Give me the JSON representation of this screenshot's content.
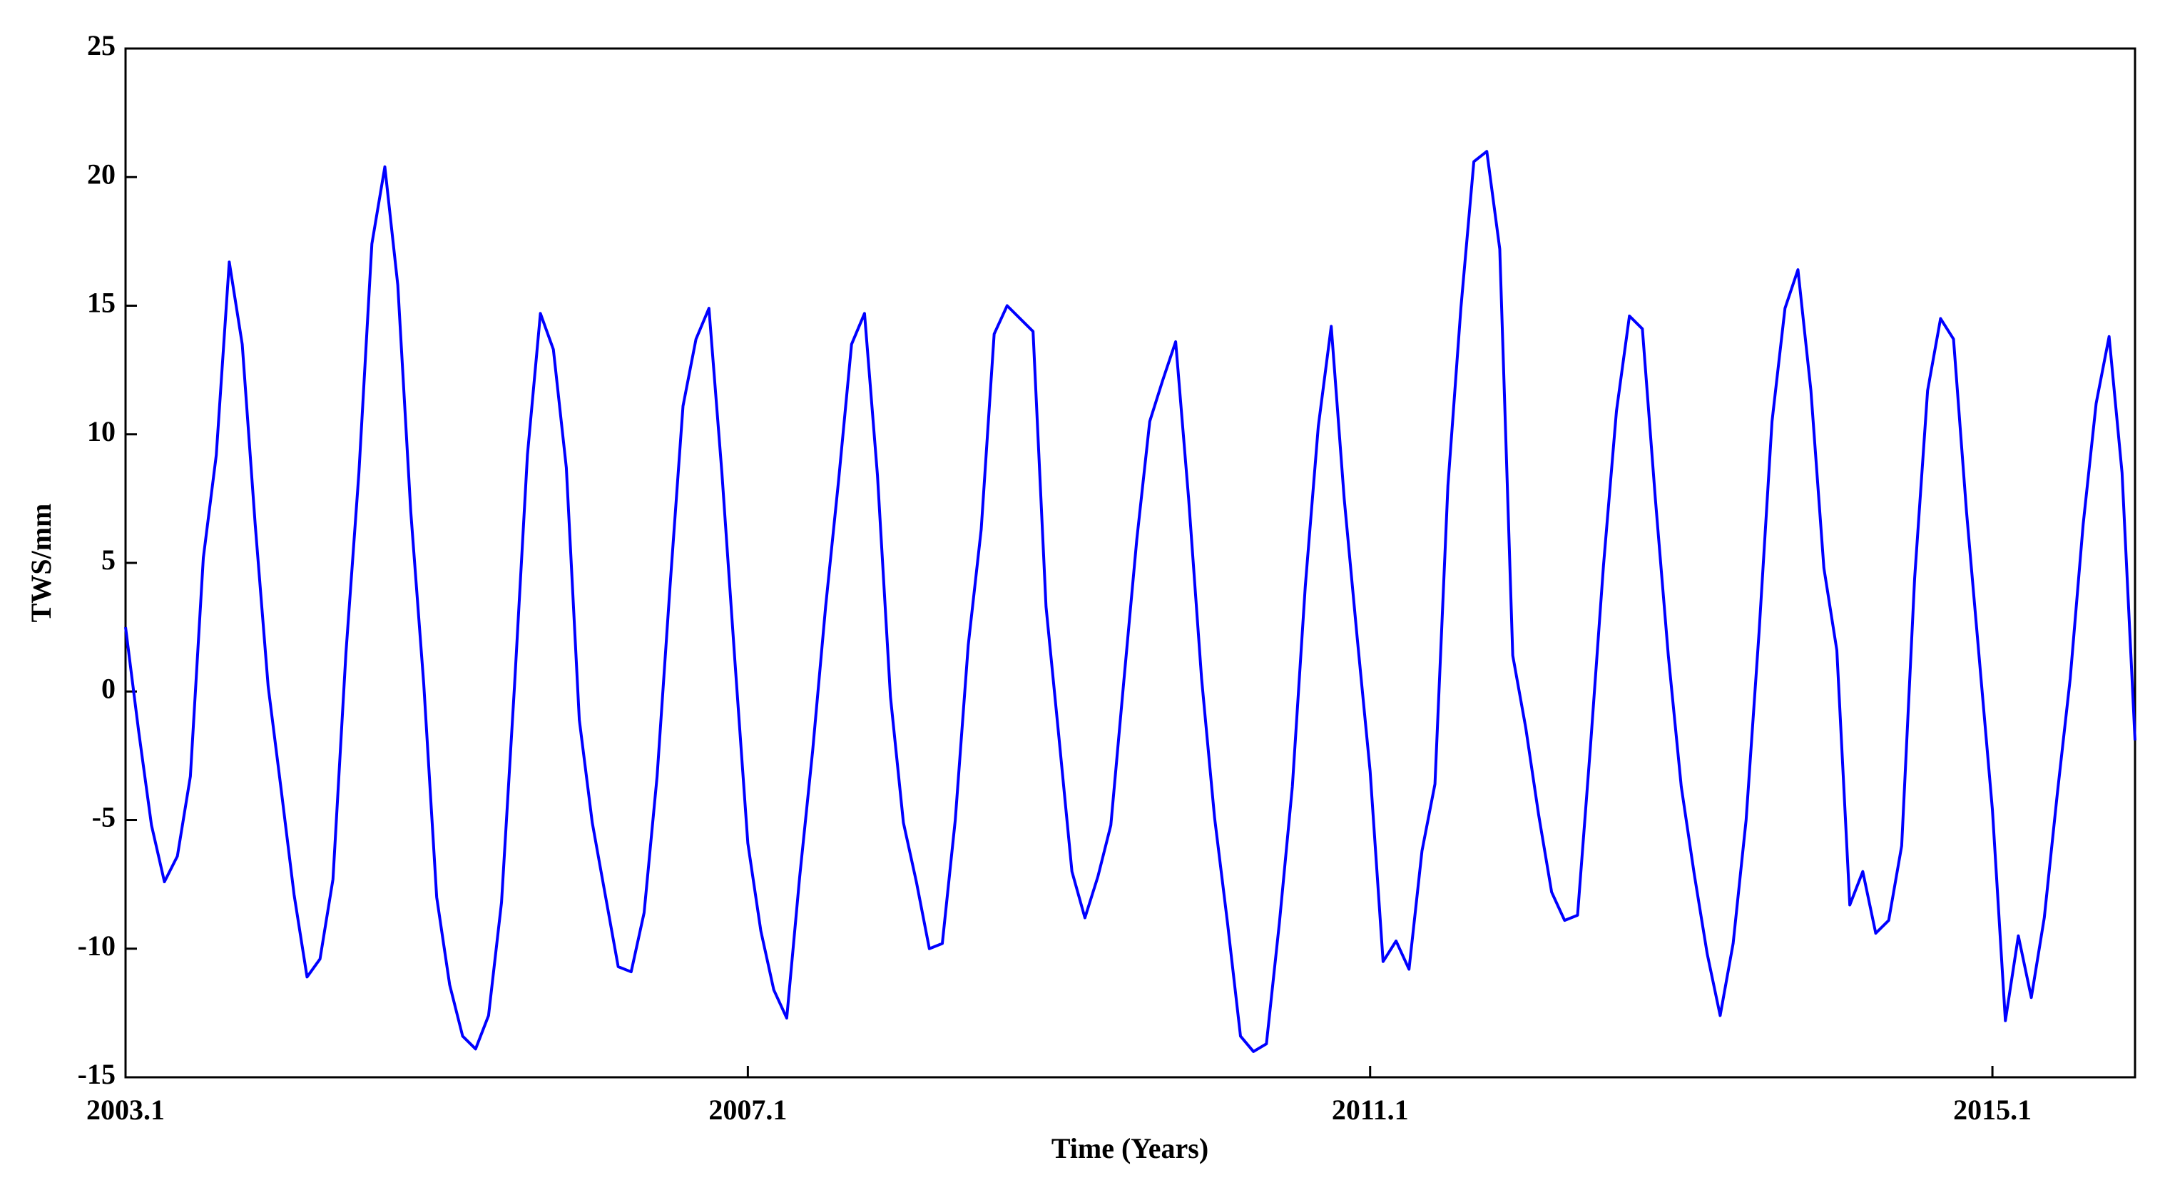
{
  "chart_data": {
    "type": "line",
    "xlabel": "Time (Years)",
    "ylabel": "TWS/mm",
    "x": [
      2003.1,
      2003.1833,
      2003.2667,
      2003.35,
      2003.4333,
      2003.5167,
      2003.6,
      2003.6833,
      2003.7667,
      2003.85,
      2003.9333,
      2004.0167,
      2004.1,
      2004.1833,
      2004.2667,
      2004.35,
      2004.4333,
      2004.5167,
      2004.6,
      2004.6833,
      2004.7667,
      2004.85,
      2004.9333,
      2005.0167,
      2005.1,
      2005.1833,
      2005.2667,
      2005.35,
      2005.4333,
      2005.5167,
      2005.6,
      2005.6833,
      2005.7667,
      2005.85,
      2005.9333,
      2006.0167,
      2006.1,
      2006.1833,
      2006.2667,
      2006.35,
      2006.4333,
      2006.5167,
      2006.6,
      2006.6833,
      2006.7667,
      2006.85,
      2006.9333,
      2007.0167,
      2007.1,
      2007.1833,
      2007.2667,
      2007.35,
      2007.4333,
      2007.5167,
      2007.6,
      2007.6833,
      2007.7667,
      2007.85,
      2007.9333,
      2008.0167,
      2008.1,
      2008.1833,
      2008.2667,
      2008.35,
      2008.4333,
      2008.5167,
      2008.6,
      2008.6833,
      2008.7667,
      2008.85,
      2008.9333,
      2009.0167,
      2009.1,
      2009.1833,
      2009.2667,
      2009.35,
      2009.4333,
      2009.5167,
      2009.6,
      2009.6833,
      2009.7667,
      2009.85,
      2009.9333,
      2010.0167,
      2010.1,
      2010.1833,
      2010.2667,
      2010.35,
      2010.4333,
      2010.5167,
      2010.6,
      2010.6833,
      2010.7667,
      2010.85,
      2010.9333,
      2011.0167,
      2011.1,
      2011.1833,
      2011.2667,
      2011.35,
      2011.4333,
      2011.5167,
      2011.6,
      2011.6833,
      2011.7667,
      2011.85,
      2011.9333,
      2012.0167,
      2012.1,
      2012.1833,
      2012.2667,
      2012.35,
      2012.4333,
      2012.5167,
      2012.6,
      2012.6833,
      2012.7667,
      2012.85,
      2012.9333,
      2013.0167,
      2013.1,
      2013.1833,
      2013.2667,
      2013.35,
      2013.4333,
      2013.5167,
      2013.6,
      2013.6833,
      2013.7667,
      2013.85,
      2013.9333,
      2014.0167,
      2014.1,
      2014.1833,
      2014.2667,
      2014.35,
      2014.4333,
      2014.5167,
      2014.6,
      2014.6833,
      2014.7667,
      2014.85,
      2014.9333,
      2015.0167,
      2015.1,
      2015.1833,
      2015.2667,
      2015.35,
      2015.4333,
      2015.5167,
      2015.6,
      2015.6833,
      2015.7667,
      2015.85,
      2015.9333,
      2016.0167
    ],
    "series": [
      {
        "color": "#0000ff",
        "values": [
          2.5,
          -1.5,
          -5.2,
          -7.4,
          -6.4,
          -3.3,
          5.2,
          9.2,
          16.7,
          13.5,
          6.5,
          0.2,
          -3.8,
          -7.9,
          -11.1,
          -10.4,
          -7.3,
          1.5,
          8.5,
          17.4,
          20.4,
          15.8,
          7,
          0.3,
          -8,
          -11.4,
          -13.4,
          -13.9,
          -12.6,
          -8.2,
          0.2,
          9.2,
          14.7,
          13.3,
          8.7,
          -1.1,
          -5.1,
          -7.9,
          -10.7,
          -10.9,
          -8.6,
          -3.3,
          4.1,
          11.1,
          13.7,
          14.9,
          8.5,
          1.2,
          -5.9,
          -9.3,
          -11.6,
          -12.7,
          -7.2,
          -2.3,
          3.3,
          8.2,
          13.5,
          14.7,
          8.4,
          -0.2,
          -5.1,
          -7.4,
          -10,
          -9.8,
          -5,
          1.8,
          6.3,
          13.9,
          15,
          14.5,
          14,
          3.3,
          -1.8,
          -7,
          -8.8,
          -7.2,
          -5.2,
          0.4,
          5.9,
          10.5,
          12.1,
          13.6,
          7.5,
          0.5,
          -4.9,
          -9,
          -13.4,
          -14,
          -13.7,
          -9,
          -3.7,
          4.1,
          10.3,
          14.2,
          7.5,
          2.1,
          -3.1,
          -10.5,
          -9.7,
          -10.8,
          -6.2,
          -3.6,
          8,
          14.9,
          20.6,
          21,
          17.2,
          1.4,
          -1.4,
          -4.8,
          -7.8,
          -8.9,
          -8.7,
          -2.1,
          4.9,
          10.9,
          14.6,
          14.1,
          7.5,
          1.4,
          -3.7,
          -7.1,
          -10.2,
          -12.6,
          -9.8,
          -5,
          2.3,
          10.5,
          14.9,
          16.4,
          11.7,
          4.8,
          1.6,
          -8.3,
          -7,
          -9.4,
          -8.9,
          -6,
          4.4,
          11.7,
          14.5,
          13.7,
          7,
          1.2,
          -4.6,
          -12.8,
          -9.5,
          -11.9,
          -8.8,
          -4,
          0.5,
          6.5,
          11.2,
          13.8,
          8.5,
          -1.9
        ]
      }
    ],
    "xlim": [
      2003.1,
      2016.0167
    ],
    "xticks": [
      2003.1,
      2007.1,
      2011.1,
      2015.1
    ],
    "ylim": [
      -15,
      25
    ],
    "yticks": [
      -15,
      -10,
      -5,
      0,
      5,
      10,
      15,
      20,
      25
    ],
    "grid": false
  }
}
